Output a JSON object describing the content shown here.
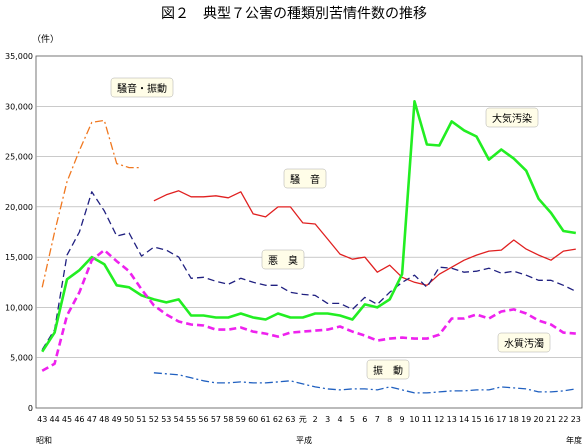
{
  "chart_data": {
    "type": "line",
    "title": "図２　典型７公害の種類別苦情件数の推移",
    "y_unit": "（件）",
    "xlabel_right": "年度",
    "era_labels": [
      "昭和",
      "平成"
    ],
    "ylim": [
      0,
      35000
    ],
    "y_ticks": [
      "0",
      "5,000",
      "10,000",
      "15,000",
      "20,000",
      "25,000",
      "30,000",
      "35,000"
    ],
    "categories": [
      "43",
      "44",
      "45",
      "46",
      "47",
      "48",
      "49",
      "50",
      "51",
      "52",
      "53",
      "54",
      "55",
      "56",
      "57",
      "58",
      "59",
      "60",
      "61",
      "62",
      "63",
      "元",
      "2",
      "3",
      "4",
      "5",
      "6",
      "7",
      "8",
      "9",
      "10",
      "11",
      "12",
      "13",
      "14",
      "15",
      "16",
      "17",
      "18",
      "19",
      "20",
      "21",
      "22",
      "23"
    ],
    "grid": true,
    "legend": "inline labels",
    "series": [
      {
        "name": "騒音・振動",
        "color": "#f07820",
        "style": "dashdot",
        "values": [
          12000,
          17500,
          22500,
          25600,
          28400,
          28600,
          24300,
          23900,
          23900,
          null,
          null,
          null,
          null,
          null,
          null,
          null,
          null,
          null,
          null,
          null,
          null,
          null,
          null,
          null,
          null,
          null,
          null,
          null,
          null,
          null,
          null,
          null,
          null,
          null,
          null,
          null,
          null,
          null,
          null,
          null,
          null,
          null,
          null,
          null
        ]
      },
      {
        "name": "騒音",
        "color": "#e02020",
        "style": "solid",
        "values": [
          null,
          null,
          null,
          null,
          null,
          null,
          null,
          null,
          null,
          20600,
          21200,
          21600,
          21000,
          21000,
          21100,
          20900,
          21500,
          19300,
          19000,
          20000,
          20000,
          18400,
          18300,
          16800,
          15300,
          14800,
          15000,
          13500,
          14200,
          13000,
          12500,
          12200,
          13300,
          14000,
          14700,
          15200,
          15600,
          15700,
          16700,
          15800,
          15200,
          14700,
          15600,
          15800
        ]
      },
      {
        "name": "悪臭",
        "color": "#202080",
        "style": "dashed",
        "values": [
          5800,
          7800,
          15200,
          17500,
          21500,
          19600,
          17100,
          17400,
          15100,
          16000,
          15700,
          15000,
          12900,
          13000,
          12600,
          12300,
          12900,
          12500,
          12200,
          12200,
          11500,
          11300,
          11200,
          10400,
          10400,
          9800,
          11000,
          10300,
          11500,
          12500,
          13200,
          12000,
          14000,
          13900,
          13500,
          13600,
          13900,
          13400,
          13600,
          13200,
          12700,
          12700,
          12200,
          11600
        ]
      },
      {
        "name": "大気汚染",
        "color": "#22ee22",
        "style": "solid",
        "values": [
          5600,
          7500,
          12800,
          13700,
          15000,
          14300,
          12200,
          12000,
          11200,
          10800,
          10500,
          10800,
          9200,
          9200,
          9000,
          9000,
          9400,
          9000,
          8800,
          9400,
          9000,
          9000,
          9400,
          9400,
          9200,
          8800,
          10300,
          10000,
          10800,
          13300,
          30500,
          26200,
          26100,
          28500,
          27600,
          27000,
          24700,
          25700,
          24800,
          23600,
          20800,
          19400,
          17600,
          17400
        ]
      },
      {
        "name": "水質汚濁",
        "color": "#ee22ee",
        "style": "dashed",
        "values": [
          3700,
          4400,
          9200,
          11500,
          14700,
          15700,
          14600,
          13600,
          11800,
          10200,
          9300,
          8600,
          8300,
          8200,
          7800,
          7800,
          8000,
          7600,
          7400,
          7100,
          7500,
          7600,
          7700,
          7800,
          8100,
          7600,
          7200,
          6700,
          6900,
          7000,
          6900,
          6900,
          7300,
          8900,
          8900,
          9300,
          8900,
          9600,
          9800,
          9400,
          8700,
          8300,
          7500,
          7400
        ]
      },
      {
        "name": "振動",
        "color": "#2060c0",
        "style": "dashdot",
        "values": [
          null,
          null,
          null,
          null,
          null,
          null,
          null,
          null,
          null,
          3500,
          3400,
          3300,
          3000,
          2700,
          2500,
          2500,
          2600,
          2500,
          2500,
          2600,
          2700,
          2400,
          2100,
          1900,
          1800,
          1900,
          1900,
          1800,
          2100,
          1800,
          1500,
          1500,
          1600,
          1700,
          1700,
          1800,
          1800,
          2100,
          2000,
          1900,
          1600,
          1600,
          1700,
          1900
        ]
      }
    ],
    "series_label_text": {
      "騒音・振動": "騒音・振動",
      "騒音": "騒　音",
      "悪臭": "悪　臭",
      "大気汚染": "大気汚染",
      "水質汚濁": "水質汚濁",
      "振動": "振　動"
    }
  }
}
